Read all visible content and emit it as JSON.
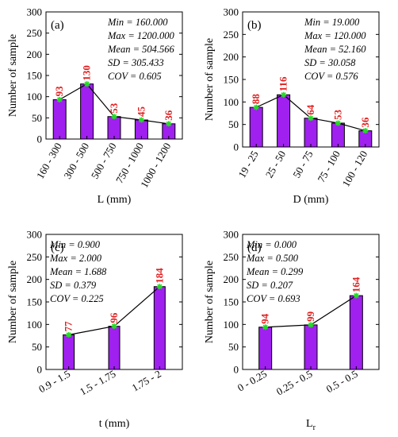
{
  "colors": {
    "bar": "#a020f0",
    "bar_edge": "#000000",
    "line": "#000000",
    "marker": "#22dd22",
    "label": "#e02020"
  },
  "chart_data": [
    {
      "type": "bar",
      "panel_label": "(a)",
      "xlabel": "L (mm)",
      "ylabel": "Number of sample",
      "categories": [
        "160 - 300",
        "300 - 500",
        "500 - 750",
        "750 - 1000",
        "1000 - 1200"
      ],
      "values": [
        93,
        130,
        53,
        45,
        36
      ],
      "ylim": [
        0,
        300
      ],
      "yticks": [
        0,
        50,
        100,
        150,
        200,
        250,
        300
      ],
      "stats": [
        "Min = 160.000",
        "Max = 1200.000",
        "Mean = 504.566",
        "SD = 305.433",
        "COV = 0.605"
      ],
      "tick_rotation": -60,
      "legend": "none",
      "overlay": "line with markers through bar tops"
    },
    {
      "type": "bar",
      "panel_label": "(b)",
      "xlabel": "D (mm)",
      "ylabel": "Number of sample",
      "categories": [
        "19 - 25",
        "25 - 50",
        "50 - 75",
        "75 - 100",
        "100 - 120"
      ],
      "values": [
        88,
        116,
        64,
        53,
        36
      ],
      "ylim": [
        0,
        300
      ],
      "yticks": [
        0,
        50,
        100,
        150,
        200,
        250,
        300
      ],
      "stats": [
        "Min = 19.000",
        "Max = 120.000",
        "Mean = 52.160",
        "SD = 30.058",
        "COV = 0.576"
      ],
      "tick_rotation": -60,
      "legend": "none",
      "overlay": "line with markers through bar tops"
    },
    {
      "type": "bar",
      "panel_label": "(c)",
      "xlabel": "t (mm)",
      "ylabel": "Number of sample",
      "categories": [
        "0.9 - 1.5",
        "1.5 - 1.75",
        "1.75 - 2"
      ],
      "values": [
        77,
        96,
        184
      ],
      "ylim": [
        0,
        300
      ],
      "yticks": [
        0,
        50,
        100,
        150,
        200,
        250,
        300
      ],
      "stats": [
        "Min = 0.900",
        "Max = 2.000",
        "Mean = 1.688",
        "SD = 0.379",
        "COV = 0.225"
      ],
      "tick_rotation": -30,
      "legend": "none",
      "overlay": "line with markers through bar tops"
    },
    {
      "type": "bar",
      "panel_label": "(d)",
      "xlabel": "L",
      "xlabel_sub": "r",
      "ylabel": "Number of sample",
      "categories": [
        "0 - 0.25",
        "0.25 - 0.5",
        "0.5 - 0.5"
      ],
      "values": [
        94,
        99,
        164
      ],
      "ylim": [
        0,
        300
      ],
      "yticks": [
        0,
        50,
        100,
        150,
        200,
        250,
        300
      ],
      "stats": [
        "Min = 0.000",
        "Max = 0.500",
        "Mean = 0.299",
        "SD = 0.207",
        "COV = 0.693"
      ],
      "tick_rotation": -30,
      "legend": "none",
      "overlay": "line with markers through bar tops"
    }
  ]
}
